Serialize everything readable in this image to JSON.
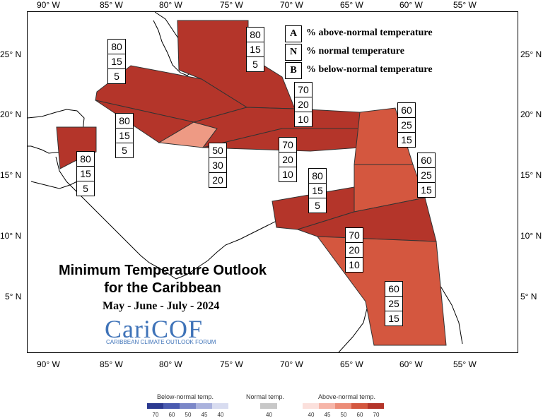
{
  "axes": {
    "lon_labels": [
      "90° W",
      "85° W",
      "80° W",
      "75° W",
      "70° W",
      "65° W",
      "60° W",
      "55° W"
    ],
    "lat_labels": [
      "25° N",
      "20° N",
      "15° N",
      "10° N",
      "5° N"
    ]
  },
  "title": {
    "line1": "Minimum Temperature Outlook",
    "line2": "for the Caribbean",
    "period": "May - June - July - 2024"
  },
  "logo": {
    "name": "CariCOF",
    "tagline": "CARIBBEAN CLIMATE OUTLOOK FORUM"
  },
  "key": [
    {
      "letter": "A",
      "text": "% above-normal temperature"
    },
    {
      "letter": "N",
      "text": "% normal temperature"
    },
    {
      "letter": "B",
      "text": "% below-normal temperature"
    }
  ],
  "regions": [
    {
      "name": "bahamas",
      "A": "80",
      "N": "15",
      "B": "5"
    },
    {
      "name": "cuba",
      "A": "80",
      "N": "15",
      "B": "5"
    },
    {
      "name": "cayman",
      "A": "80",
      "N": "15",
      "B": "5"
    },
    {
      "name": "belize",
      "A": "80",
      "N": "15",
      "B": "5"
    },
    {
      "name": "jamaica",
      "A": "50",
      "N": "30",
      "B": "20"
    },
    {
      "name": "hispaniola-pr",
      "A": "70",
      "N": "20",
      "B": "10"
    },
    {
      "name": "caribbean-sea",
      "A": "70",
      "N": "20",
      "B": "10"
    },
    {
      "name": "leeward",
      "A": "60",
      "N": "25",
      "B": "15"
    },
    {
      "name": "windward",
      "A": "60",
      "N": "25",
      "B": "15"
    },
    {
      "name": "abc-islands",
      "A": "80",
      "N": "15",
      "B": "5"
    },
    {
      "name": "trinidad",
      "A": "70",
      "N": "20",
      "B": "10"
    },
    {
      "name": "guianas",
      "A": "60",
      "N": "25",
      "B": "15"
    }
  ],
  "scale": {
    "below_title": "Below-normal temp.",
    "normal_title": "Normal temp.",
    "above_title": "Above-normal temp.",
    "below_ticks": [
      "70",
      "60",
      "50",
      "45",
      "40"
    ],
    "normal_ticks": [
      "40"
    ],
    "above_ticks": [
      "40",
      "45",
      "50",
      "60",
      "70"
    ],
    "below_colors": [
      "#2b3990",
      "#4a5bb0",
      "#7b87c8",
      "#aab2dd",
      "#d8dcf0"
    ],
    "normal_color": "#c8c8c8",
    "above_colors": [
      "#fbe0dc",
      "#f6b5a8",
      "#ec8c77",
      "#d4573f",
      "#b4352a"
    ]
  }
}
